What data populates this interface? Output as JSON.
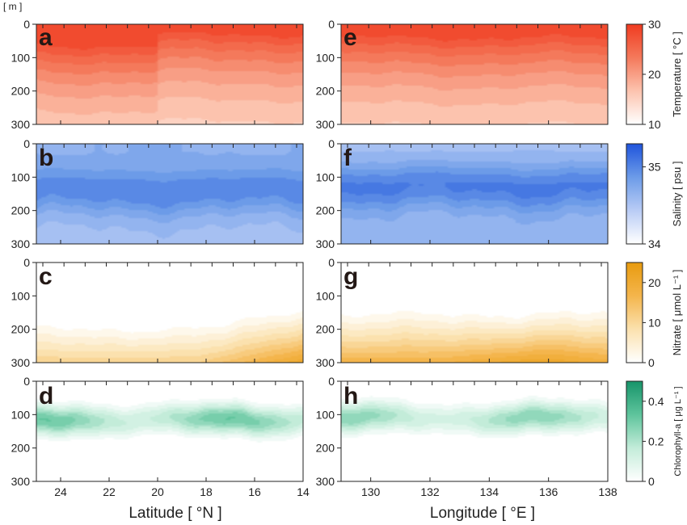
{
  "figure": {
    "depth_unit": "[ m ]",
    "x_labels": {
      "latitude": "Latitude [ °N ]",
      "longitude": "Longitude [ °E ]"
    },
    "lat_ticks": [
      24,
      22,
      20,
      18,
      16,
      14
    ],
    "lon_ticks": [
      130,
      132,
      134,
      136,
      138
    ],
    "depth_ticks": [
      0,
      100,
      200,
      300
    ]
  },
  "chart_data": [
    {
      "type": "heatmap",
      "panel": "a",
      "variable": "temperature",
      "section": "latitude",
      "xlim": [
        25,
        14
      ],
      "ylim": [
        300,
        0
      ],
      "zlim": [
        10,
        30
      ],
      "surface": 29.5,
      "deep": 12,
      "gradient_scale": 210
    },
    {
      "type": "heatmap",
      "panel": "e",
      "variable": "temperature",
      "section": "longitude",
      "xlim": [
        129,
        138
      ],
      "ylim": [
        300,
        0
      ],
      "zlim": [
        10,
        30
      ],
      "surface": 29.5,
      "deep": 12,
      "gradient_scale": 210
    },
    {
      "type": "heatmap",
      "panel": "b",
      "variable": "salinity",
      "section": "latitude",
      "xlim": [
        25,
        14
      ],
      "ylim": [
        300,
        0
      ],
      "zlim": [
        34,
        35.3
      ],
      "surface": 34.75,
      "max": 35.05,
      "max_depth": 140,
      "deep": 34.6
    },
    {
      "type": "heatmap",
      "panel": "f",
      "variable": "salinity",
      "section": "longitude",
      "xlim": [
        129,
        138
      ],
      "ylim": [
        300,
        0
      ],
      "zlim": [
        34,
        35.3
      ],
      "surface": 34.6,
      "max": 35.1,
      "max_depth": 130,
      "deep": 34.7
    },
    {
      "type": "heatmap",
      "panel": "c",
      "variable": "nitrate",
      "section": "latitude",
      "xlim": [
        25,
        14
      ],
      "ylim": [
        300,
        0
      ],
      "zlim": [
        0,
        25
      ],
      "nitracline_start": 170,
      "bottom_value": 12,
      "bottom_value_south": 22
    },
    {
      "type": "heatmap",
      "panel": "g",
      "variable": "nitrate",
      "section": "longitude",
      "xlim": [
        129,
        138
      ],
      "ylim": [
        300,
        0
      ],
      "zlim": [
        0,
        25
      ],
      "nitracline_start": 130,
      "bottom_value": 18,
      "bottom_value_east": 22
    },
    {
      "type": "heatmap",
      "panel": "d",
      "variable": "chlorophyll",
      "section": "latitude",
      "xlim": [
        25,
        14
      ],
      "ylim": [
        300,
        0
      ],
      "zlim": [
        0,
        0.5
      ],
      "dcm_depth": 115,
      "dcm_max": 0.35
    },
    {
      "type": "heatmap",
      "panel": "h",
      "variable": "chlorophyll",
      "section": "longitude",
      "xlim": [
        129,
        138
      ],
      "ylim": [
        300,
        0
      ],
      "zlim": [
        0,
        0.5
      ],
      "dcm_depth": 110,
      "dcm_max": 0.3
    }
  ],
  "colorbars": [
    {
      "variable": "temperature",
      "label": "Temperature [ °C ]",
      "ticks": [
        "10",
        "20",
        "30"
      ],
      "range": [
        10,
        30
      ],
      "tick_values": [
        10,
        20,
        30
      ],
      "colors": [
        "#ffffff",
        "#fcc3ae",
        "#f4795b",
        "#f03b20"
      ]
    },
    {
      "variable": "salinity",
      "label": "Salinity [ psu ]",
      "ticks": [
        "34",
        "35"
      ],
      "range": [
        34,
        35.3
      ],
      "tick_values": [
        34,
        35
      ],
      "colors": [
        "#ffffff",
        "#b9ccf5",
        "#6c9be8",
        "#1f54dc"
      ]
    },
    {
      "variable": "nitrate",
      "label": "Nitrate [ μmol L⁻¹ ]",
      "ticks": [
        "0",
        "10",
        "20"
      ],
      "range": [
        0,
        25
      ],
      "tick_values": [
        0,
        10,
        20
      ],
      "colors": [
        "#ffffff",
        "#fbe1ae",
        "#f4b54c",
        "#e89b0f"
      ]
    },
    {
      "variable": "chlorophyll",
      "label": "Chlorophyll-a [ μg L⁻¹ ]",
      "ticks": [
        "0",
        "0.2",
        "0.4"
      ],
      "range": [
        0,
        0.5
      ],
      "tick_values": [
        0,
        0.2,
        0.4
      ],
      "colors": [
        "#ffffff",
        "#c3ecd9",
        "#5ec49c",
        "#17946a"
      ]
    }
  ]
}
